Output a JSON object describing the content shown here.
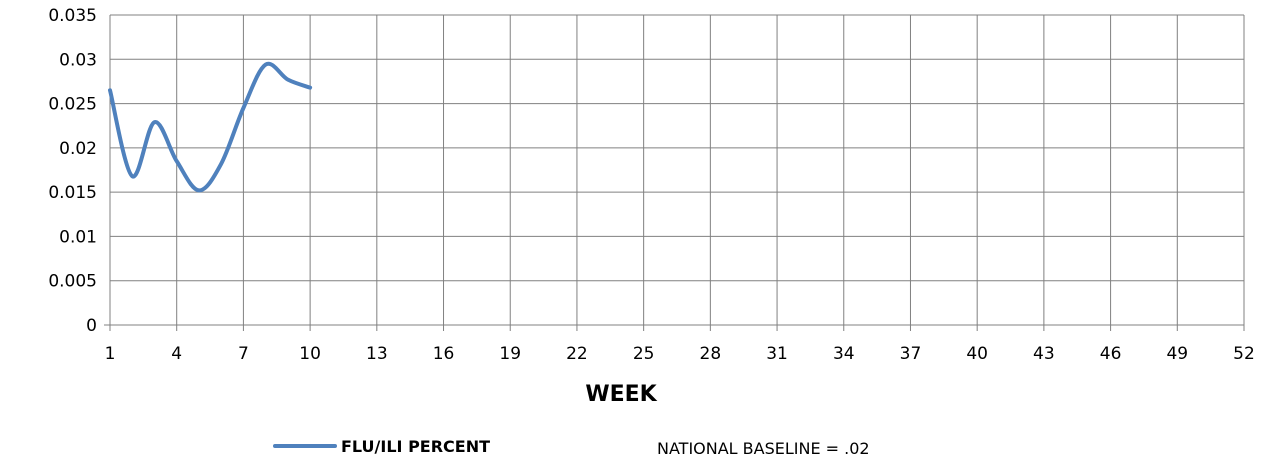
{
  "chart_data": {
    "type": "line",
    "xlabel": "WEEK",
    "ylabel": "",
    "xlim": [
      1,
      52
    ],
    "ylim": [
      0,
      0.035
    ],
    "grid": true,
    "legend_position": "bottom",
    "x_ticks": [
      "1",
      "4",
      "7",
      "10",
      "13",
      "16",
      "19",
      "22",
      "25",
      "28",
      "31",
      "34",
      "37",
      "40",
      "43",
      "46",
      "49",
      "52"
    ],
    "y_ticks": [
      "0",
      "0.005",
      "0.01",
      "0.015",
      "0.02",
      "0.025",
      "0.03",
      "0.035"
    ],
    "series": [
      {
        "name": "FLU/ILI PERCENT",
        "color": "#4F81BD",
        "smooth": true,
        "x": [
          1,
          2,
          3,
          4,
          5,
          6,
          7,
          8,
          9,
          10
        ],
        "y": [
          0.0265,
          0.0168,
          0.0229,
          0.0185,
          0.0152,
          0.0182,
          0.0245,
          0.0294,
          0.0277,
          0.0268
        ]
      }
    ],
    "annotation": "NATIONAL BASELINE = .02"
  },
  "colors": {
    "grid": "#808080",
    "axis": "#808080",
    "series": "#4F81BD"
  }
}
